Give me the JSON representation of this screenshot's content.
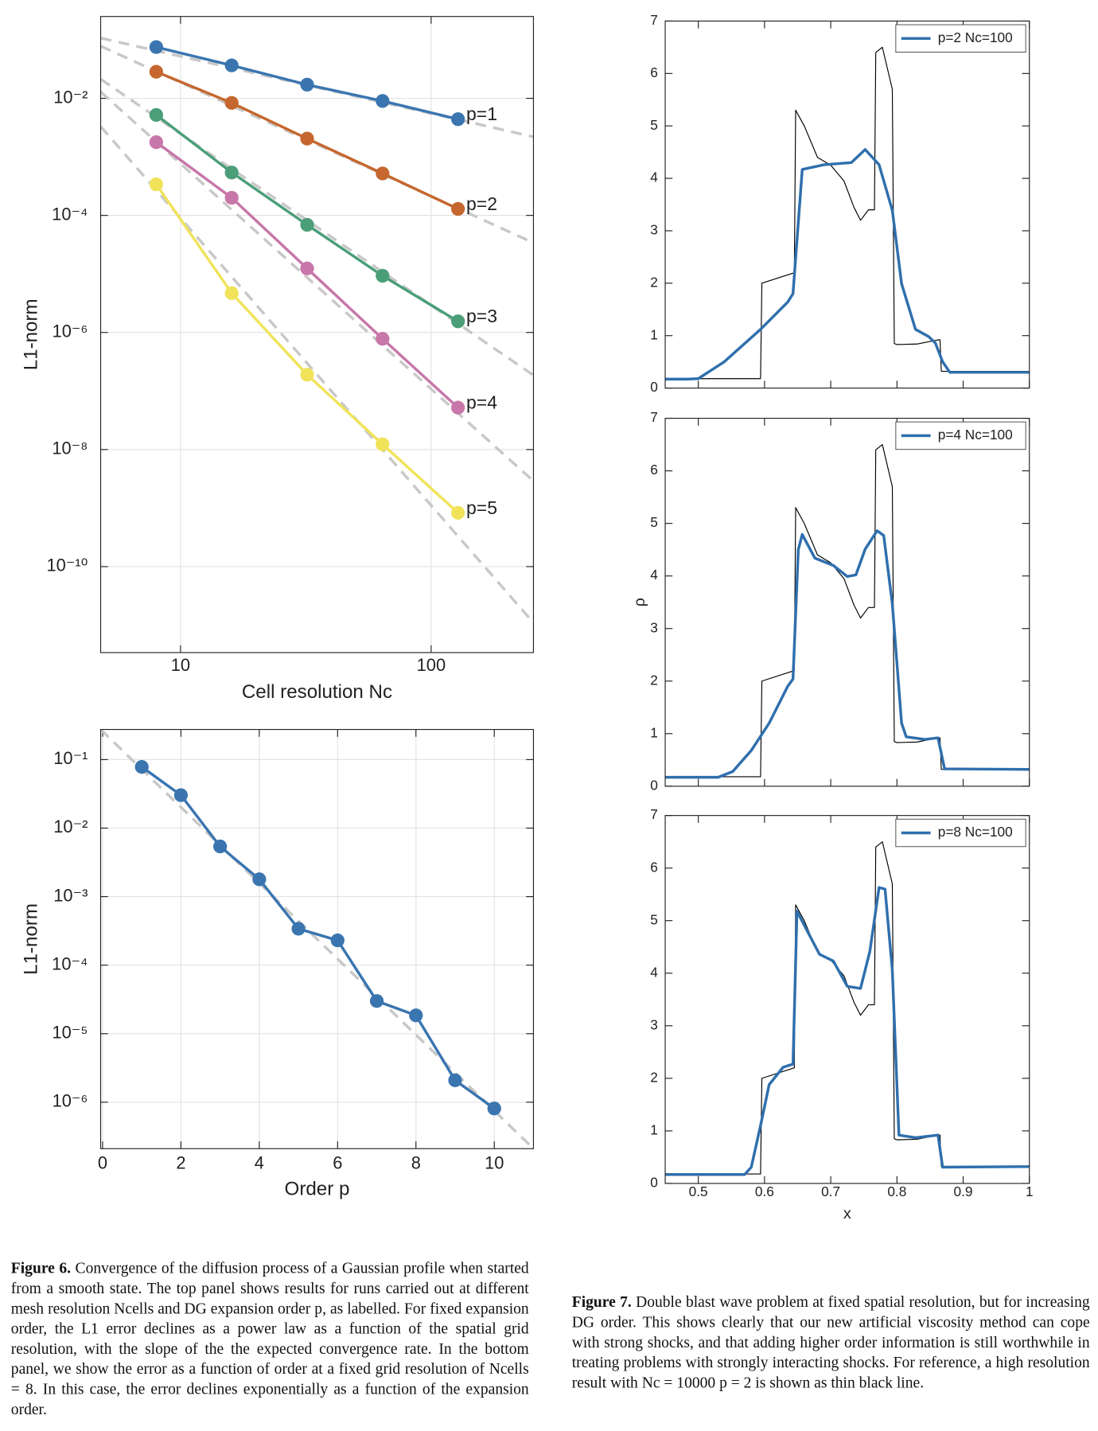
{
  "chart_data": [
    {
      "type": "line",
      "log_x": true,
      "log_y": true,
      "grid": true,
      "markers": true,
      "end_labels": true,
      "xlabel": "Cell resolution Nc",
      "ylabel": "L1-norm",
      "x": [
        8,
        16,
        32,
        64,
        128
      ],
      "xlim": [
        4.8,
        256
      ],
      "xticks": [
        10,
        100
      ],
      "ylim": [
        3.4e-12,
        0.25
      ],
      "yticks": [
        {
          "value": 0.01,
          "label": "10⁻²"
        },
        {
          "value": 0.0001,
          "label": "10⁻⁴"
        },
        {
          "value": 1e-06,
          "label": "10⁻⁶"
        },
        {
          "value": 1e-08,
          "label": "10⁻⁸"
        },
        {
          "value": 1e-10,
          "label": "10⁻¹⁰"
        }
      ],
      "series": [
        {
          "name": "p=1",
          "color": "#3a75b0",
          "values": [
            0.075,
            0.0365,
            0.0171,
            0.009,
            0.0044
          ]
        },
        {
          "name": "p=2",
          "color": "#c5672e",
          "values": [
            0.0284,
            0.00835,
            0.00205,
            0.00052,
            0.000129
          ]
        },
        {
          "name": "p=3",
          "color": "#4a9e78",
          "values": [
            0.0052,
            0.00054,
            6.9e-05,
            9.3e-06,
            1.55e-06
          ]
        },
        {
          "name": "p=4",
          "color": "#c777a9",
          "values": [
            0.00178,
            0.0002,
            1.24e-05,
            7.8e-07,
            5.2e-08
          ]
        },
        {
          "name": "p=5",
          "color": "#f0e35a",
          "values": [
            0.00034,
            4.7e-06,
            1.9e-07,
            1.23e-08,
            8.3e-10
          ]
        }
      ],
      "reference_color": "#c8c8c8",
      "reference_lines": [
        {
          "x": [
            4.8,
            256
          ],
          "y": [
            0.107,
            0.0022
          ]
        },
        {
          "x": [
            4.8,
            256
          ],
          "y": [
            0.078,
            3.4e-05
          ]
        },
        {
          "x": [
            4.8,
            256
          ],
          "y": [
            0.0213,
            1.86e-07
          ]
        },
        {
          "x": [
            4.8,
            256
          ],
          "y": [
            0.0129,
            2.9e-09
          ]
        },
        {
          "x": [
            4.8,
            256
          ],
          "y": [
            0.0033,
            1.1e-11
          ]
        }
      ]
    },
    {
      "type": "line",
      "log_x": false,
      "log_y": true,
      "grid": true,
      "markers": true,
      "xlabel": "Order p",
      "ylabel": "L1-norm",
      "x": [
        1,
        2,
        3,
        4,
        5,
        6,
        7,
        8,
        9,
        10
      ],
      "xlim": [
        -0.05,
        11
      ],
      "xticks": [
        0,
        2,
        4,
        6,
        8,
        10
      ],
      "ylim": [
        2.1e-07,
        0.275
      ],
      "yticks": [
        {
          "value": 0.1,
          "label": "10⁻¹"
        },
        {
          "value": 0.01,
          "label": "10⁻²"
        },
        {
          "value": 0.001,
          "label": "10⁻³"
        },
        {
          "value": 0.0001,
          "label": "10⁻⁴"
        },
        {
          "value": 1e-05,
          "label": "10⁻⁵"
        },
        {
          "value": 1e-06,
          "label": "10⁻⁶"
        }
      ],
      "series": [
        {
          "color": "#3a75b0",
          "values": [
            0.0782,
            0.0302,
            0.0054,
            0.00179,
            0.00034,
            0.00023,
            3e-05,
            1.85e-05,
            2.09e-06,
            8.1e-07
          ]
        }
      ],
      "reference_color": "#c8c8c8",
      "reference_lines": [
        {
          "x": [
            -0.05,
            11
          ],
          "y": [
            0.275,
            2.1e-07
          ]
        }
      ]
    },
    {
      "type": "line",
      "log_x": false,
      "log_y": false,
      "grid": false,
      "xtick_labels": false,
      "legend": "upper right",
      "xlim": [
        0.45,
        1
      ],
      "xticks": [
        0.5,
        0.6,
        0.7,
        0.8,
        0.9,
        1
      ],
      "ylim": [
        0,
        7
      ],
      "yticks": [
        0,
        1,
        2,
        3,
        4,
        5,
        6,
        7
      ],
      "series": [
        {
          "color": "#000000",
          "width": 1,
          "x": [
            0.45,
            0.594,
            0.596,
            0.645,
            0.647,
            0.66,
            0.68,
            0.7,
            0.72,
            0.735,
            0.745,
            0.757,
            0.766,
            0.768,
            0.778,
            0.793,
            0.796,
            0.8,
            0.83,
            0.863,
            0.865,
            0.867,
            1
          ],
          "values": [
            0.18,
            0.18,
            2.0,
            2.2,
            5.3,
            5.0,
            4.4,
            4.25,
            3.95,
            3.45,
            3.2,
            3.4,
            3.4,
            6.4,
            6.5,
            5.7,
            0.85,
            0.83,
            0.84,
            0.92,
            0.92,
            0.32,
            0.32
          ]
        },
        {
          "name": "p=2 Nc=100",
          "color": "#2f6fad",
          "width": 3,
          "x": [
            0.45,
            0.483,
            0.5,
            0.539,
            0.594,
            0.635,
            0.643,
            0.657,
            0.69,
            0.731,
            0.752,
            0.773,
            0.793,
            0.807,
            0.828,
            0.848,
            0.858,
            0.869,
            0.88,
            1
          ],
          "values": [
            0.17,
            0.17,
            0.18,
            0.5,
            1.12,
            1.64,
            1.8,
            4.17,
            4.26,
            4.3,
            4.55,
            4.26,
            3.39,
            1.99,
            1.12,
            0.98,
            0.86,
            0.5,
            0.3,
            0.3
          ]
        }
      ]
    },
    {
      "type": "line",
      "log_x": false,
      "log_y": false,
      "grid": false,
      "xtick_labels": false,
      "legend": "upper right",
      "ylabel": "ρ",
      "xlim": [
        0.45,
        1
      ],
      "xticks": [
        0.5,
        0.6,
        0.7,
        0.8,
        0.9,
        1
      ],
      "ylim": [
        0,
        7
      ],
      "yticks": [
        0,
        1,
        2,
        3,
        4,
        5,
        6,
        7
      ],
      "series": [
        {
          "color": "#000000",
          "width": 1,
          "x": [
            0.45,
            0.594,
            0.596,
            0.645,
            0.647,
            0.66,
            0.68,
            0.7,
            0.72,
            0.735,
            0.745,
            0.757,
            0.766,
            0.768,
            0.778,
            0.793,
            0.796,
            0.8,
            0.83,
            0.863,
            0.865,
            0.867,
            1
          ],
          "values": [
            0.18,
            0.18,
            2.0,
            2.2,
            5.3,
            5.0,
            4.4,
            4.25,
            3.95,
            3.45,
            3.2,
            3.4,
            3.4,
            6.4,
            6.5,
            5.7,
            0.85,
            0.83,
            0.84,
            0.92,
            0.92,
            0.32,
            0.32
          ]
        },
        {
          "name": "p=4 Nc=100",
          "color": "#2f6fad",
          "width": 3,
          "x": [
            0.45,
            0.53,
            0.552,
            0.58,
            0.607,
            0.635,
            0.643,
            0.651,
            0.657,
            0.676,
            0.704,
            0.725,
            0.738,
            0.752,
            0.77,
            0.78,
            0.793,
            0.807,
            0.814,
            0.842,
            0.862,
            0.872,
            1
          ],
          "values": [
            0.17,
            0.17,
            0.28,
            0.68,
            1.2,
            1.9,
            2.04,
            4.5,
            4.79,
            4.34,
            4.2,
            3.99,
            4.02,
            4.51,
            4.86,
            4.77,
            3.47,
            1.2,
            0.94,
            0.89,
            0.92,
            0.33,
            0.32
          ]
        }
      ]
    },
    {
      "type": "line",
      "log_x": false,
      "log_y": false,
      "grid": false,
      "legend": "upper right",
      "xlabel": "x",
      "xlim": [
        0.45,
        1
      ],
      "xticks": [
        0.5,
        0.6,
        0.7,
        0.8,
        0.9,
        1
      ],
      "ylim": [
        0,
        7
      ],
      "yticks": [
        0,
        1,
        2,
        3,
        4,
        5,
        6,
        7
      ],
      "series": [
        {
          "color": "#000000",
          "width": 1,
          "x": [
            0.45,
            0.594,
            0.596,
            0.645,
            0.647,
            0.66,
            0.68,
            0.7,
            0.72,
            0.735,
            0.745,
            0.757,
            0.766,
            0.768,
            0.778,
            0.793,
            0.796,
            0.8,
            0.83,
            0.863,
            0.865,
            0.867,
            1
          ],
          "values": [
            0.18,
            0.18,
            2.0,
            2.2,
            5.3,
            5.0,
            4.4,
            4.25,
            3.95,
            3.45,
            3.2,
            3.4,
            3.4,
            6.4,
            6.5,
            5.7,
            0.85,
            0.83,
            0.84,
            0.92,
            0.92,
            0.32,
            0.32
          ]
        },
        {
          "name": "p=8 Nc=100",
          "color": "#2f6fad",
          "width": 3,
          "x": [
            0.45,
            0.57,
            0.58,
            0.594,
            0.607,
            0.628,
            0.643,
            0.649,
            0.663,
            0.683,
            0.704,
            0.725,
            0.745,
            0.759,
            0.773,
            0.782,
            0.793,
            0.803,
            0.828,
            0.862,
            0.869,
            1
          ],
          "values": [
            0.17,
            0.17,
            0.31,
            1.1,
            1.88,
            2.21,
            2.27,
            5.18,
            4.84,
            4.36,
            4.23,
            3.75,
            3.71,
            4.41,
            5.63,
            5.6,
            4.06,
            0.92,
            0.87,
            0.92,
            0.31,
            0.32
          ]
        }
      ]
    }
  ],
  "captions": [
    {
      "label": "Figure 6.",
      "text": "Convergence of the diffusion process of a Gaussian profile when started from a smooth state. The top panel shows results for runs carried out at different mesh resolution Ncells and DG expansion order p, as labelled. For fixed expansion order, the L1 error declines as a power law as a function of the spatial grid resolution, with the slope of the the expected convergence rate. In the bottom panel, we show the error as a function of order at a fixed grid resolution of Ncells = 8. In this case, the error declines exponentially as a function of the expansion order."
    },
    {
      "label": "Figure 7.",
      "text": "Double blast wave problem at fixed spatial resolution, but for increasing DG order. This shows clearly that our new artificial viscosity method can cope with strong shocks, and that adding higher order information is still worthwhile in treating problems with strongly interacting shocks. For reference, a high resolution result with Nc = 10000 p = 2 is shown as thin black line."
    }
  ]
}
